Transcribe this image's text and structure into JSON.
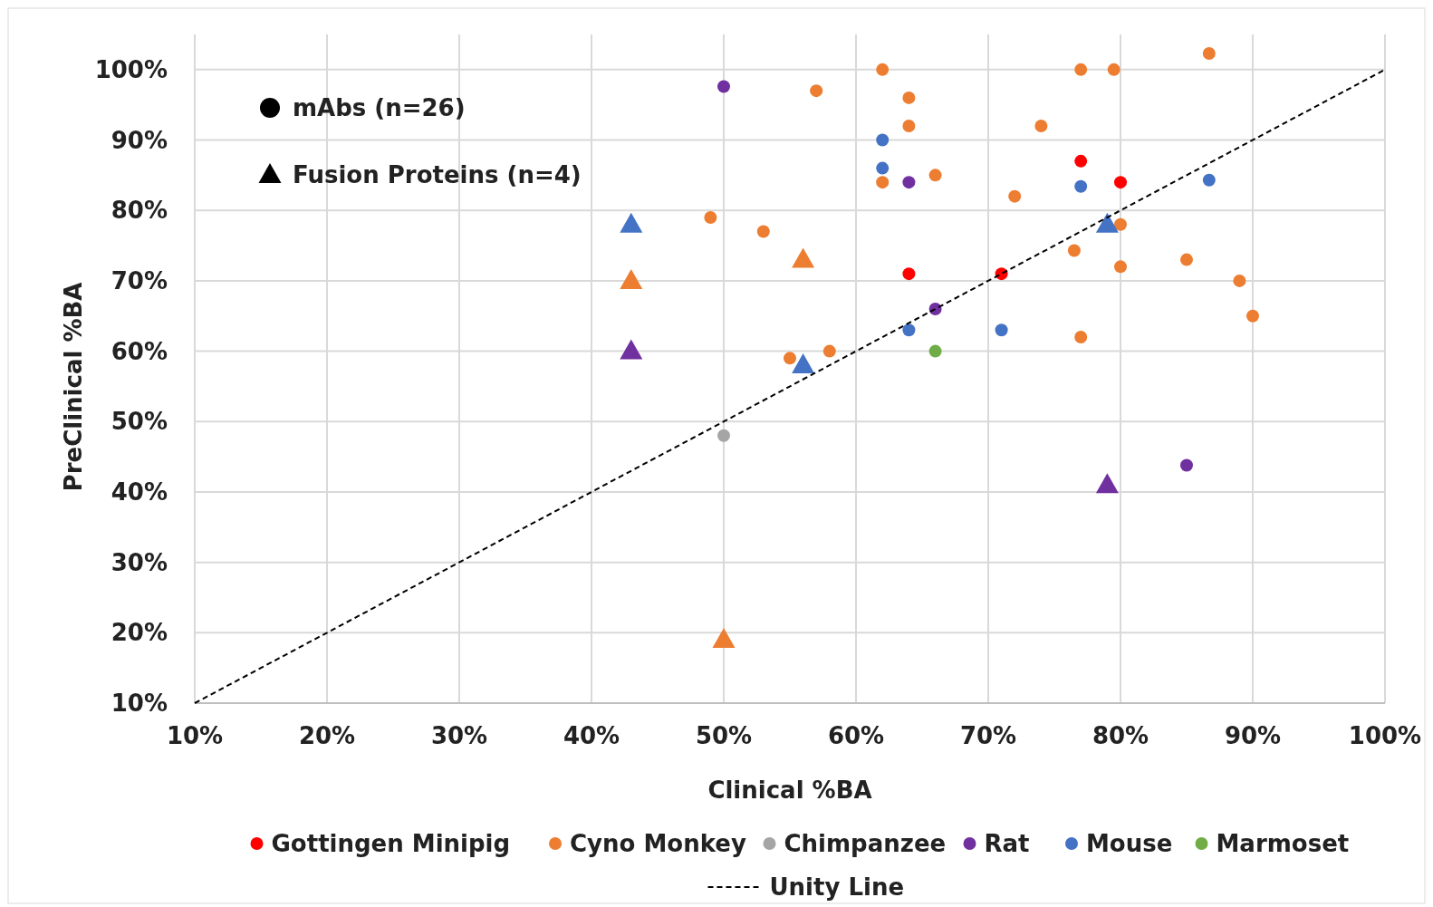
{
  "chart_data": {
    "type": "scatter",
    "xlabel": "Clinical %BA",
    "ylabel": "PreClinical %BA",
    "xlim": [
      10,
      100
    ],
    "ylim": [
      10,
      105
    ],
    "xticks": [
      {
        "value": 10,
        "label": "10%"
      },
      {
        "value": 20,
        "label": "20%"
      },
      {
        "value": 30,
        "label": "30%"
      },
      {
        "value": 40,
        "label": "40%"
      },
      {
        "value": 50,
        "label": "50%"
      },
      {
        "value": 60,
        "label": "60%"
      },
      {
        "value": 70,
        "label": "70%"
      },
      {
        "value": 80,
        "label": "80%"
      },
      {
        "value": 90,
        "label": "90%"
      },
      {
        "value": 100,
        "label": "100%"
      }
    ],
    "yticks": [
      {
        "value": 10,
        "label": "10%"
      },
      {
        "value": 20,
        "label": "20%"
      },
      {
        "value": 30,
        "label": "30%"
      },
      {
        "value": 40,
        "label": "40%"
      },
      {
        "value": 50,
        "label": "50%"
      },
      {
        "value": 60,
        "label": "60%"
      },
      {
        "value": 70,
        "label": "70%"
      },
      {
        "value": 80,
        "label": "80%"
      },
      {
        "value": 90,
        "label": "90%"
      },
      {
        "value": 100,
        "label": "100%"
      }
    ],
    "grid": true,
    "legend": "bottom",
    "annotations": [
      "mAbs (n=26)",
      "Fusion Proteins (n=4)"
    ],
    "series": [
      {
        "name": "Gottingen Minipig",
        "color": "#ff0000",
        "marker": "circle",
        "x": [
          77,
          80,
          64,
          71
        ],
        "values": [
          87,
          84,
          71,
          71
        ]
      },
      {
        "name": "Cyno Monkey",
        "color": "#ed7d31",
        "marker": "circle",
        "x": [
          86.7,
          62,
          77,
          79.5,
          57,
          64,
          64,
          74,
          62,
          66,
          72,
          49,
          53,
          80,
          76.5,
          85,
          80,
          89,
          90,
          77,
          55,
          58
        ],
        "values": [
          102.3,
          100,
          100,
          100,
          97,
          96,
          92,
          92,
          84,
          85,
          82,
          79,
          77,
          78,
          74.3,
          73,
          72,
          70,
          65,
          62,
          59,
          60
        ]
      },
      {
        "name": "Chimpanzee",
        "color": "#a5a5a5",
        "marker": "circle",
        "x": [
          50
        ],
        "values": [
          48
        ]
      },
      {
        "name": "Rat",
        "color": "#7030a0",
        "marker": "circle",
        "x": [
          50,
          64,
          66,
          85
        ],
        "values": [
          97.6,
          84,
          66,
          43.8
        ]
      },
      {
        "name": "Mouse",
        "color": "#4472c4",
        "marker": "circle",
        "x": [
          62,
          62,
          77,
          86.7,
          64,
          71
        ],
        "values": [
          90,
          86,
          83.4,
          84.3,
          63,
          63
        ]
      },
      {
        "name": "Marmoset",
        "color": "#70ad47",
        "marker": "circle",
        "x": [
          66
        ],
        "values": [
          60
        ]
      },
      {
        "color": "#4472c4",
        "marker": "triangle",
        "x": [
          43,
          56,
          79
        ],
        "values": [
          78,
          58,
          78
        ]
      },
      {
        "color": "#ed7d31",
        "marker": "triangle",
        "x": [
          43,
          56,
          50
        ],
        "values": [
          70,
          73,
          19
        ]
      },
      {
        "color": "#7030a0",
        "marker": "triangle",
        "x": [
          43,
          79
        ],
        "values": [
          60,
          41
        ]
      },
      {
        "name": "Unity Line",
        "type": "line",
        "color": "#000000",
        "line_style": "dashed",
        "x": [
          10,
          100
        ],
        "values": [
          10,
          100
        ]
      }
    ]
  }
}
